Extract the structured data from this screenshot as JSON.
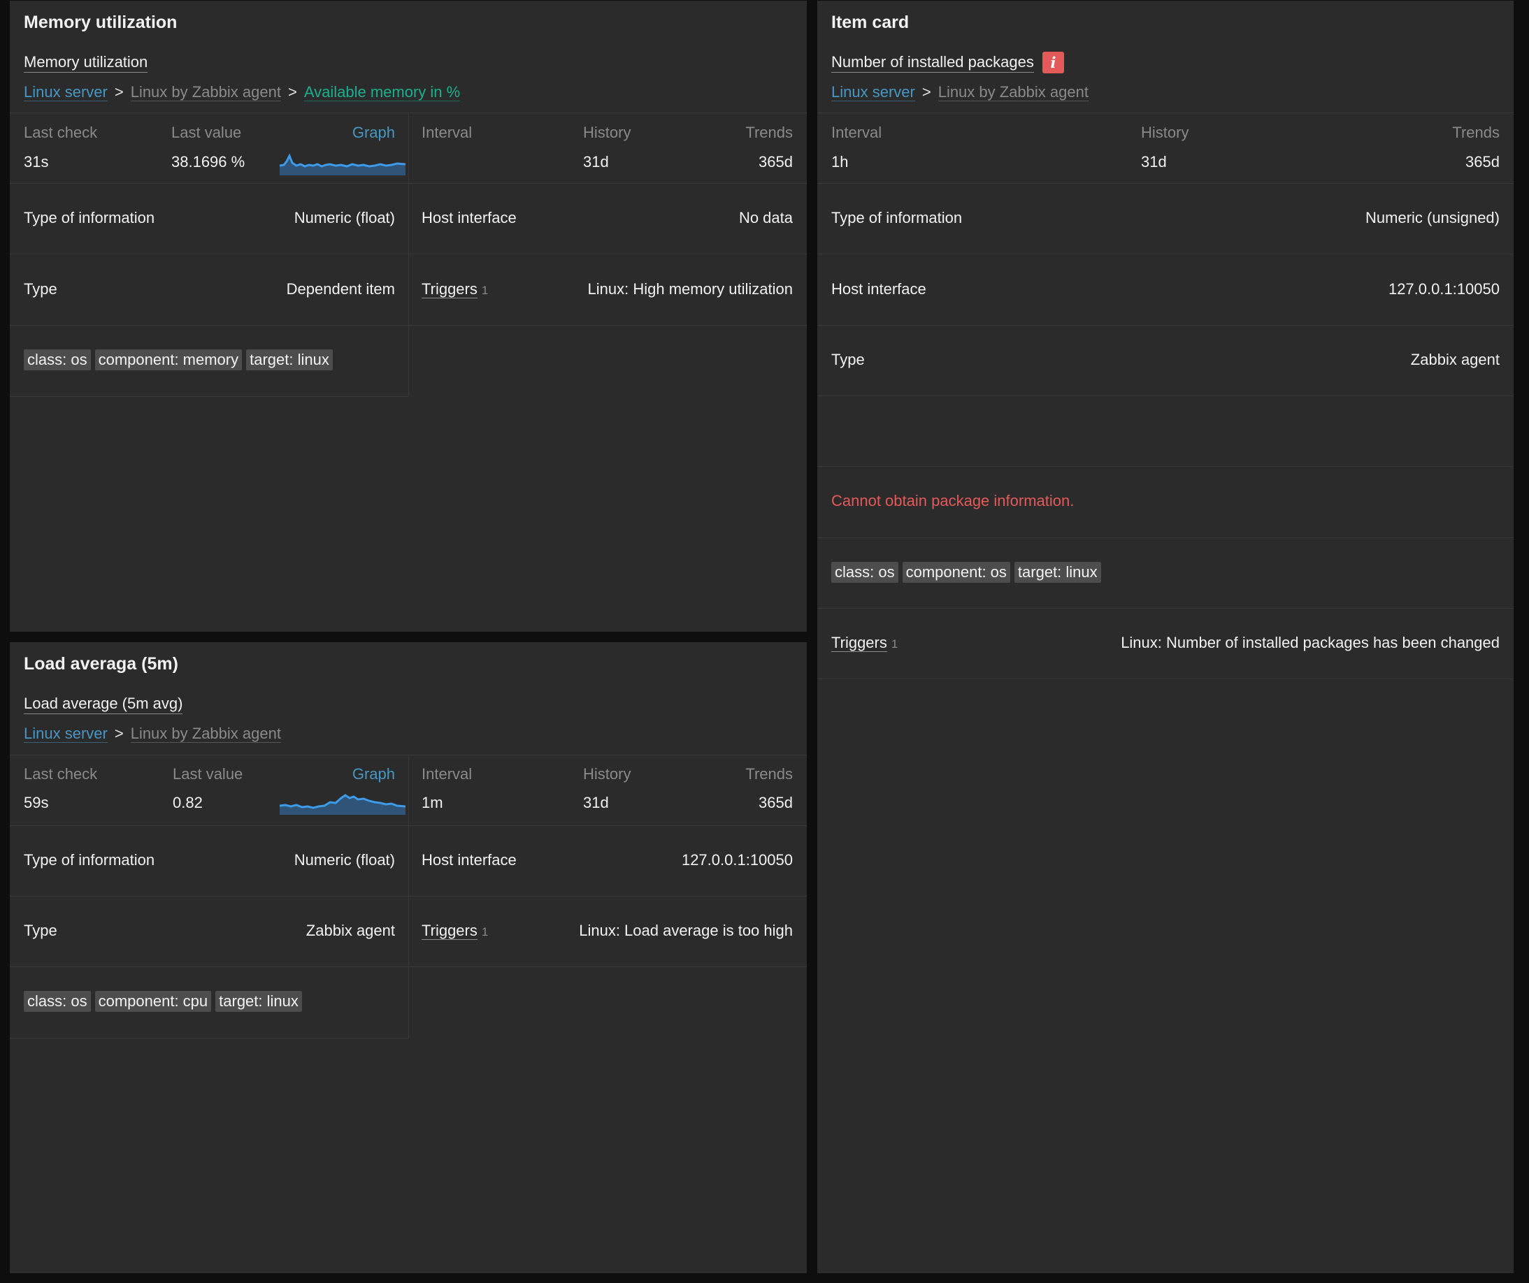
{
  "memory_widget": {
    "title": "Memory utilization",
    "item_name": "Memory utilization",
    "breadcrumb": {
      "host": "Linux server",
      "template": "Linux by Zabbix agent",
      "item": "Available memory in %",
      "separator": ">"
    },
    "last_check_label": "Last check",
    "last_check_value": "31s",
    "last_value_label": "Last value",
    "last_value": "38.1696 %",
    "graph_label": "Graph",
    "interval_label": "Interval",
    "interval_value": "",
    "history_label": "History",
    "history_value": "31d",
    "trends_label": "Trends",
    "trends_value": "365d",
    "type_of_info_label": "Type of information",
    "type_of_info_value": "Numeric (float)",
    "host_interface_label": "Host interface",
    "host_interface_value": "No data",
    "type_label": "Type",
    "type_value": "Dependent item",
    "triggers_label": "Triggers",
    "triggers_count": "1",
    "trigger_name": "Linux: High memory utilization",
    "tags": [
      "class: os",
      "component: memory",
      "target: linux"
    ]
  },
  "load_widget": {
    "title": "Load averaga (5m)",
    "item_name": "Load average (5m avg)",
    "breadcrumb": {
      "host": "Linux server",
      "template": "Linux by Zabbix agent",
      "separator": ">"
    },
    "last_check_label": "Last check",
    "last_check_value": "59s",
    "last_value_label": "Last value",
    "last_value": "0.82",
    "graph_label": "Graph",
    "interval_label": "Interval",
    "interval_value": "1m",
    "history_label": "History",
    "history_value": "31d",
    "trends_label": "Trends",
    "trends_value": "365d",
    "type_of_info_label": "Type of information",
    "type_of_info_value": "Numeric (float)",
    "host_interface_label": "Host interface",
    "host_interface_value": "127.0.0.1:10050",
    "type_label": "Type",
    "type_value": "Zabbix agent",
    "triggers_label": "Triggers",
    "triggers_count": "1",
    "trigger_name": "Linux: Load average is too high",
    "tags": [
      "class: os",
      "component: cpu",
      "target: linux"
    ]
  },
  "item_card_widget": {
    "title": "Item card",
    "item_name": "Number of installed packages",
    "info_icon": "i",
    "breadcrumb": {
      "host": "Linux server",
      "template": "Linux by Zabbix agent",
      "separator": ">"
    },
    "interval_label": "Interval",
    "interval_value": "1h",
    "history_label": "History",
    "history_value": "31d",
    "trends_label": "Trends",
    "trends_value": "365d",
    "type_of_info_label": "Type of information",
    "type_of_info_value": "Numeric (unsigned)",
    "host_interface_label": "Host interface",
    "host_interface_value": "127.0.0.1:10050",
    "type_label": "Type",
    "type_value": "Zabbix agent",
    "error_message": "Cannot obtain package information.",
    "tags": [
      "class: os",
      "component: os",
      "target: linux"
    ],
    "triggers_label": "Triggers",
    "triggers_count": "1",
    "trigger_name": "Linux: Number of installed packages has been changed"
  },
  "colors": {
    "background": "#0e0e0e",
    "widget_bg": "#2b2b2b",
    "link_blue": "#4796c4",
    "item_teal": "#1aaf8f",
    "error_red": "#e45959",
    "sparkline": "#3d9be9"
  }
}
